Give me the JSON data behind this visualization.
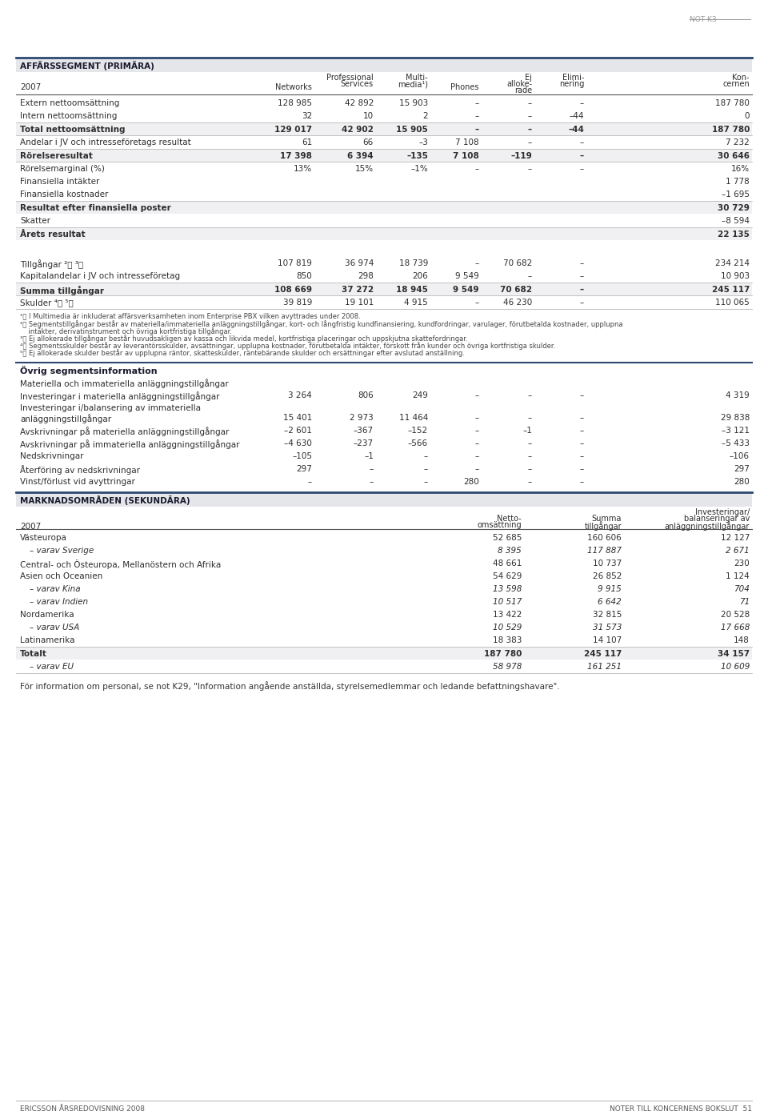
{
  "page_label": "NOT K3",
  "footer_left": "ERICSSON ÅRSREDOVISNING 2008",
  "footer_right": "NOTER TILL KONCERNENS BOKSLUT  51",
  "section1_title": "AFFÄRSSEGMENT (PRIMÄRA)",
  "section2_title": "Övrig segmentsinformation",
  "section3_title": "MARKNADSOMRÅDEN (SEKUNDÄRA)",
  "ovrig_header_label": "Materiella och immateriella anläggningstillgångar",
  "primary_rows": [
    {
      "label": "Extern nettoomsättning",
      "bold": false,
      "line_above": false,
      "line_below": false,
      "vals": [
        "128 985",
        "42 892",
        "15 903",
        "–",
        "–",
        "–",
        "187 780"
      ]
    },
    {
      "label": "Intern nettoomsättning",
      "bold": false,
      "line_above": false,
      "line_below": false,
      "vals": [
        "32",
        "10",
        "2",
        "–",
        "–",
        "–44",
        "0"
      ]
    },
    {
      "label": "Total nettoomsättning",
      "bold": true,
      "line_above": true,
      "line_below": true,
      "vals": [
        "129 017",
        "42 902",
        "15 905",
        "–",
        "–",
        "–44",
        "187 780"
      ]
    },
    {
      "label": "Andelar i JV och intresseföretags resultat",
      "bold": false,
      "line_above": false,
      "line_below": false,
      "vals": [
        "61",
        "66",
        "–3",
        "7 108",
        "–",
        "–",
        "7 232"
      ]
    },
    {
      "label": "Rörelseresultat",
      "bold": true,
      "line_above": true,
      "line_below": true,
      "vals": [
        "17 398",
        "6 394",
        "–135",
        "7 108",
        "–119",
        "–",
        "30 646"
      ]
    },
    {
      "label": "Rörelsemarginal (%)",
      "bold": false,
      "line_above": false,
      "line_below": false,
      "vals": [
        "13%",
        "15%",
        "–1%",
        "–",
        "–",
        "–",
        "16%"
      ]
    },
    {
      "label": "Finansiella intäkter",
      "bold": false,
      "line_above": false,
      "line_below": false,
      "vals": [
        "",
        "",
        "",
        "",
        "",
        "",
        "1 778"
      ]
    },
    {
      "label": "Finansiella kostnader",
      "bold": false,
      "line_above": false,
      "line_below": false,
      "vals": [
        "",
        "",
        "",
        "",
        "",
        "",
        "–1 695"
      ]
    },
    {
      "label": "Resultat efter finansiella poster",
      "bold": true,
      "line_above": true,
      "line_below": false,
      "vals": [
        "",
        "",
        "",
        "",
        "",
        "",
        "30 729"
      ]
    },
    {
      "label": "Skatter",
      "bold": false,
      "line_above": false,
      "line_below": false,
      "vals": [
        "",
        "",
        "",
        "",
        "",
        "",
        "–8 594"
      ]
    },
    {
      "label": "Årets resultat",
      "bold": true,
      "line_above": true,
      "line_below": false,
      "vals": [
        "",
        "",
        "",
        "",
        "",
        "",
        "22 135"
      ]
    },
    {
      "label": "SPACER",
      "bold": false,
      "line_above": false,
      "line_below": false,
      "vals": [
        "",
        "",
        "",
        "",
        "",
        "",
        ""
      ]
    },
    {
      "label": "Tillgångar ²⧩ ³⧩",
      "bold": false,
      "line_above": false,
      "line_below": false,
      "vals": [
        "107 819",
        "36 974",
        "18 739",
        "–",
        "70 682",
        "–",
        "234 214"
      ]
    },
    {
      "label": "Kapitalandelar i JV och intresseföretag",
      "bold": false,
      "line_above": false,
      "line_below": false,
      "vals": [
        "850",
        "298",
        "206",
        "9 549",
        "–",
        "–",
        "10 903"
      ]
    },
    {
      "label": "Summa tillgångar",
      "bold": true,
      "line_above": true,
      "line_below": true,
      "vals": [
        "108 669",
        "37 272",
        "18 945",
        "9 549",
        "70 682",
        "–",
        "245 117"
      ]
    },
    {
      "label": "Skulder ⁴⧩ ⁵⧩",
      "bold": false,
      "line_above": false,
      "line_below": false,
      "vals": [
        "39 819",
        "19 101",
        "4 915",
        "–",
        "46 230",
        "–",
        "110 065"
      ]
    }
  ],
  "footnotes": [
    "¹⧩ I Multimedia är inkluderat affärsverksamheten inom Enterprise PBX vilken avyttrades under 2008.",
    "²⧩ Segmentstillgångar består av materiella/immateriella anläggningstillgångar, kort- och långfristig kundfinansiering, kundfordringar, varulager, förutbetalda kostnader, upplupna",
    "    intäkter, derivatinstrument och övriga kortfristiga tillgångar.",
    "³⧩ Ej allokerade tillgångar består huvudsakligen av kassa och likvida medel, kortfristiga placeringar och uppskjutna skattefordringar.",
    "⁴⧩ Segmentsskulder består av leverantörsskulder, avsättningar, upplupna kostnader, förutbetalda intäkter, förskott från kunder och övriga kortfristiga skulder.",
    "⁵⧩ Ej allokerade skulder består av upplupna räntor, skatteskulder, räntebärande skulder och ersättningar efter avslutad anställning."
  ],
  "ovrig_rows": [
    {
      "label": "Investeringar i materiella anläggningstillgångar",
      "vals": [
        "3 264",
        "806",
        "249",
        "–",
        "–",
        "–",
        "4 319"
      ]
    },
    {
      "label": "Investeringar i/balansering av immateriella",
      "vals": [
        "",
        "",
        "",
        "",
        "",
        "",
        ""
      ]
    },
    {
      "label": "anläggningstillgångar",
      "vals": [
        "15 401",
        "2 973",
        "11 464",
        "–",
        "–",
        "–",
        "29 838"
      ]
    },
    {
      "label": "Avskrivningar på materiella anläggningstillgångar",
      "vals": [
        "–2 601",
        "–367",
        "–152",
        "–",
        "–1",
        "–",
        "–3 121"
      ]
    },
    {
      "label": "Avskrivningar på immateriella anläggningstillgångar",
      "vals": [
        "–4 630",
        "–237",
        "–566",
        "–",
        "–",
        "–",
        "–5 433"
      ]
    },
    {
      "label": "Nedskrivningar",
      "vals": [
        "–105",
        "–1",
        "–",
        "–",
        "–",
        "–",
        "–106"
      ]
    },
    {
      "label": "Återföring av nedskrivningar",
      "vals": [
        "297",
        "–",
        "–",
        "–",
        "–",
        "–",
        "297"
      ]
    },
    {
      "label": "Vinst/förlust vid avyttringar",
      "vals": [
        "–",
        "–",
        "–",
        "280",
        "–",
        "–",
        "280"
      ]
    }
  ],
  "secondary_rows": [
    {
      "label": "Västeuropa",
      "bold": false,
      "indent": false,
      "line_above": false,
      "vals": [
        "52 685",
        "160 606",
        "12 127"
      ]
    },
    {
      "label": "– varav Sverige",
      "bold": false,
      "indent": true,
      "vals": [
        "8 395",
        "117 887",
        "2 671"
      ]
    },
    {
      "label": "Central- och Östeuropa, Mellanöstern och Afrika",
      "bold": false,
      "indent": false,
      "vals": [
        "48 661",
        "10 737",
        "230"
      ]
    },
    {
      "label": "Asien och Oceanien",
      "bold": false,
      "indent": false,
      "vals": [
        "54 629",
        "26 852",
        "1 124"
      ]
    },
    {
      "label": "– varav Kina",
      "bold": false,
      "indent": true,
      "vals": [
        "13 598",
        "9 915",
        "704"
      ]
    },
    {
      "label": "– varav Indien",
      "bold": false,
      "indent": true,
      "vals": [
        "10 517",
        "6 642",
        "71"
      ]
    },
    {
      "label": "Nordamerika",
      "bold": false,
      "indent": false,
      "vals": [
        "13 422",
        "32 815",
        "20 528"
      ]
    },
    {
      "label": "– varav USA",
      "bold": false,
      "indent": true,
      "vals": [
        "10 529",
        "31 573",
        "17 668"
      ]
    },
    {
      "label": "Latinamerika",
      "bold": false,
      "indent": false,
      "vals": [
        "18 383",
        "14 107",
        "148"
      ]
    },
    {
      "label": "Totalt",
      "bold": true,
      "indent": false,
      "line_above": true,
      "vals": [
        "187 780",
        "245 117",
        "34 157"
      ]
    },
    {
      "label": "– varav EU",
      "bold": false,
      "indent": true,
      "vals": [
        "58 978",
        "161 251",
        "10 609"
      ]
    }
  ],
  "final_note": "För information om personal, se not K29, \"Information angående anställda, styrelsemedlemmar och ledande befattningshavare\"."
}
